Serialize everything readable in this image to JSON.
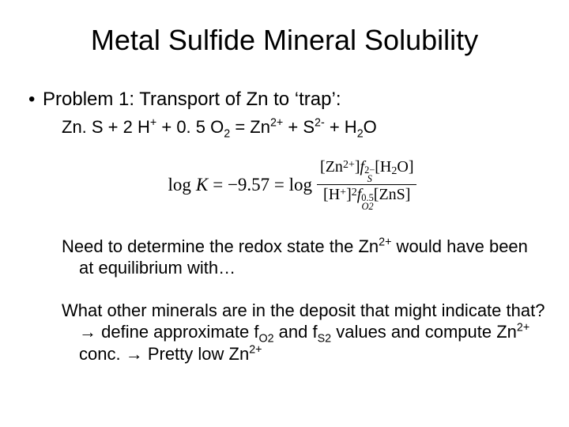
{
  "title": "Metal Sulfide Mineral Solubility",
  "bullet": {
    "dot": "•",
    "text": "Problem 1: Transport of Zn to ‘trap’:"
  },
  "reaction": {
    "lhs1": "Zn. S + 2 H",
    "hsup": "+",
    "plus1": " + 0. 5 O",
    "osub": "2",
    "eq": " = Zn",
    "znsup": "2+",
    "plus2": " + S",
    "ssup": "2-",
    "plus3": " + H",
    "h2sub": "2",
    "tail": "O"
  },
  "formula": {
    "logK": "log",
    "Kital": "K",
    "eqval": "= −9.57 = log",
    "num_open": "[Zn",
    "num_znsup": "2+",
    "num_close1": "]",
    "num_fS": "f",
    "num_fS_sub": "S",
    "num_fS_sup": "2−",
    "num_h2o": "[H",
    "num_h2o_sub": "2",
    "num_h2o_tail": "O]",
    "den_h": "[H",
    "den_h_sup": "+",
    "den_h_close": "]",
    "den_h_exp": "2",
    "den_fO": "f",
    "den_fO_sub": "O2",
    "den_fO_exp": "0.5",
    "den_zns": "[ZnS]"
  },
  "para1": {
    "a": "Need to determine the redox state the Zn",
    "sup": "2+",
    "b": " would have been at equilibrium with…"
  },
  "para2": {
    "a": "What other minerals are in the deposit that might indicate that? ",
    "arrow1": "→",
    "b": " define approximate f",
    "fo2": "O2",
    "c": " and f",
    "fs2": "S2",
    "fs2sup": "-",
    "d": " values and compute Zn",
    "znsup": "2+",
    "e": " conc. ",
    "arrow2": "→",
    "f": " Pretty low Zn",
    "znsup2": "2+"
  },
  "style": {
    "background": "#ffffff",
    "text_color": "#000000",
    "title_fontsize": 36,
    "body_fontsize": 22,
    "font_family": "Arial"
  }
}
